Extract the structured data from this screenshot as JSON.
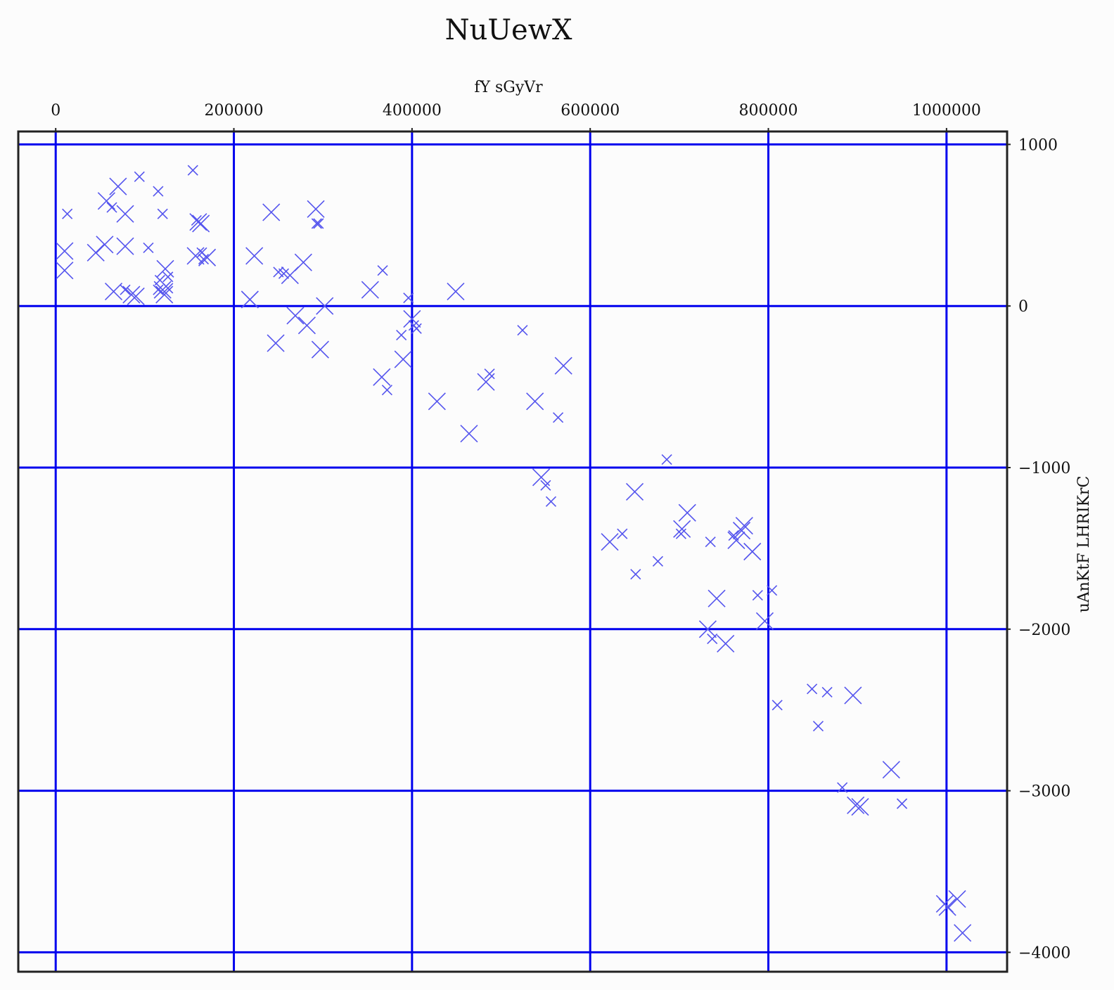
{
  "chart_data": {
    "type": "scatter",
    "title": "NuUewX",
    "xlabel": "fY sGyVr",
    "ylabel": "uAnKtF LHRIKrC",
    "x_axis_position": "top",
    "y_axis_position": "right",
    "xlim": [
      -42000,
      1068000
    ],
    "ylim": [
      -4120,
      1080
    ],
    "xticks": [
      0,
      200000,
      400000,
      600000,
      800000,
      1000000
    ],
    "xtick_labels": [
      "0",
      "200000",
      "400000",
      "600000",
      "800000",
      "1000000"
    ],
    "yticks": [
      1000,
      0,
      -1000,
      -2000,
      -3000,
      -4000
    ],
    "ytick_labels": [
      "1000",
      "0",
      "−1000",
      "−2000",
      "−3000",
      "−4000"
    ],
    "grid": true,
    "grid_color": "#0000ee",
    "marker": "x",
    "marker_color": "#5555ee",
    "frame_color": "#222222",
    "series": [
      {
        "points": [
          [
            10000,
            340,
            24
          ],
          [
            10000,
            220,
            24
          ],
          [
            13000,
            570,
            14
          ],
          [
            45000,
            330,
            24
          ],
          [
            55000,
            380,
            24
          ],
          [
            57000,
            650,
            24
          ],
          [
            63000,
            610,
            14
          ],
          [
            65000,
            90,
            24
          ],
          [
            70000,
            740,
            24
          ],
          [
            78000,
            100,
            14
          ],
          [
            78000,
            570,
            24
          ],
          [
            78000,
            370,
            24
          ],
          [
            85000,
            70,
            24
          ],
          [
            90000,
            60,
            24
          ],
          [
            94000,
            800,
            14
          ],
          [
            104000,
            360,
            14
          ],
          [
            115000,
            710,
            14
          ],
          [
            115000,
            100,
            14
          ],
          [
            117000,
            160,
            14
          ],
          [
            120000,
            100,
            24
          ],
          [
            120000,
            570,
            14
          ],
          [
            122000,
            70,
            24
          ],
          [
            123000,
            230,
            24
          ],
          [
            126000,
            110,
            14
          ],
          [
            126000,
            180,
            14
          ],
          [
            154000,
            840,
            14
          ],
          [
            157000,
            310,
            24
          ],
          [
            158000,
            530,
            14
          ],
          [
            160000,
            520,
            24
          ],
          [
            163000,
            510,
            24
          ],
          [
            164000,
            330,
            14
          ],
          [
            166000,
            290,
            14
          ],
          [
            170000,
            300,
            24
          ],
          [
            218000,
            40,
            24
          ],
          [
            223000,
            310,
            24
          ],
          [
            242000,
            580,
            24
          ],
          [
            247000,
            -230,
            24
          ],
          [
            250000,
            210,
            14
          ],
          [
            256000,
            200,
            14
          ],
          [
            263000,
            190,
            24
          ],
          [
            269000,
            -60,
            24
          ],
          [
            278000,
            270,
            24
          ],
          [
            282000,
            -120,
            24
          ],
          [
            292000,
            600,
            24
          ],
          [
            293000,
            510,
            14
          ],
          [
            295000,
            510,
            14
          ],
          [
            297000,
            -270,
            24
          ],
          [
            302000,
            0,
            24
          ],
          [
            353000,
            100,
            24
          ],
          [
            366000,
            -440,
            24
          ],
          [
            367000,
            220,
            14
          ],
          [
            372000,
            -520,
            14
          ],
          [
            388000,
            -180,
            14
          ],
          [
            390000,
            -330,
            24
          ],
          [
            396000,
            50,
            14
          ],
          [
            400000,
            -80,
            24
          ],
          [
            402000,
            -120,
            14
          ],
          [
            405000,
            -140,
            14
          ],
          [
            428000,
            -590,
            24
          ],
          [
            449000,
            90,
            24
          ],
          [
            464000,
            -790,
            24
          ],
          [
            483000,
            -470,
            24
          ],
          [
            487000,
            -420,
            14
          ],
          [
            524000,
            -150,
            14
          ],
          [
            538000,
            -590,
            24
          ],
          [
            545000,
            -1060,
            24
          ],
          [
            550000,
            -1110,
            14
          ],
          [
            556000,
            -1210,
            14
          ],
          [
            564000,
            -690,
            14
          ],
          [
            570000,
            -370,
            24
          ],
          [
            622000,
            -1460,
            24
          ],
          [
            636000,
            -1410,
            14
          ],
          [
            650000,
            -1150,
            24
          ],
          [
            651000,
            -1660,
            14
          ],
          [
            676000,
            -1580,
            14
          ],
          [
            686000,
            -950,
            14
          ],
          [
            702000,
            -1410,
            14
          ],
          [
            703000,
            -1380,
            24
          ],
          [
            709000,
            -1280,
            24
          ],
          [
            735000,
            -1460,
            14
          ],
          [
            732000,
            -2000,
            24
          ],
          [
            737000,
            -2060,
            14
          ],
          [
            742000,
            -1810,
            24
          ],
          [
            752000,
            -2090,
            24
          ],
          [
            761000,
            -1420,
            14
          ],
          [
            764000,
            -1450,
            24
          ],
          [
            770000,
            -1390,
            24
          ],
          [
            773000,
            -1360,
            24
          ],
          [
            782000,
            -1520,
            24
          ],
          [
            788000,
            -1790,
            14
          ],
          [
            796000,
            -1950,
            24
          ],
          [
            804000,
            -1760,
            14
          ],
          [
            810000,
            -2470,
            14
          ],
          [
            849000,
            -2370,
            14
          ],
          [
            856000,
            -2600,
            14
          ],
          [
            866000,
            -2390,
            14
          ],
          [
            883000,
            -2980,
            14
          ],
          [
            895000,
            -2410,
            24
          ],
          [
            898000,
            -3090,
            24
          ],
          [
            903000,
            -3100,
            24
          ],
          [
            938000,
            -2870,
            24
          ],
          [
            950000,
            -3080,
            14
          ],
          [
            998000,
            -3700,
            24
          ],
          [
            1001000,
            -3720,
            24
          ],
          [
            1012000,
            -3670,
            24
          ],
          [
            1018000,
            -3880,
            24
          ]
        ]
      }
    ]
  }
}
